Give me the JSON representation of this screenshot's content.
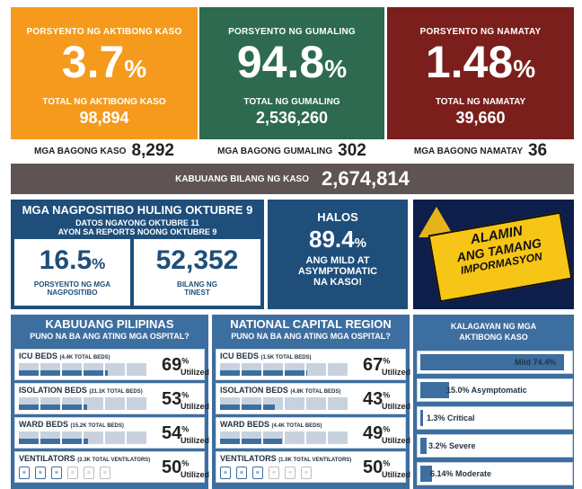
{
  "cards": {
    "active": {
      "title": "PORSYENTO NG AKTIBONG KASO",
      "value": "3.7",
      "pct": "%",
      "subtitle": "TOTAL NG AKTIBONG KASO",
      "number": "98,894",
      "color": "#f59a1c"
    },
    "recovered": {
      "title": "PORSYENTO NG GUMALING",
      "value": "94.8",
      "pct": "%",
      "subtitle": "TOTAL NG GUMALING",
      "number": "2,536,260",
      "color": "#2d6a4f"
    },
    "deaths": {
      "title": "PORSYENTO NG NAMATAY",
      "value": "1.48",
      "pct": "%",
      "subtitle": "TOTAL NG NAMATAY",
      "number": "39,660",
      "color": "#7a1f1c"
    }
  },
  "new_cases": {
    "label": "MGA BAGONG KASO",
    "value": "8,292"
  },
  "new_recovered": {
    "label": "MGA BAGONG GUMALING",
    "value": "302"
  },
  "new_deaths": {
    "label": "MGA BAGONG NAMATAY",
    "value": "36"
  },
  "total_cases": {
    "label": "KABUUANG BILANG NG KASO",
    "value": "2,674,814"
  },
  "positivity": {
    "title": "MGA NAGPOSITIBO HULING OKTUBRE 9",
    "date_line1": "DATOS NGAYONG OKTUBRE 11",
    "date_line2": "AYON SA REPORTS NOONG OKTUBRE 9",
    "rate_value": "16.5",
    "rate_pct": "%",
    "rate_label_1": "PORSYENTO NG MGA",
    "rate_label_2": "NAGPOSITIBO",
    "tested_value": "52,352",
    "tested_label_1": "BILANG NG",
    "tested_label_2": "TINEST"
  },
  "mild": {
    "line1": "HALOS",
    "value": "89.4",
    "pct": "%",
    "line2": "ANG MILD AT",
    "line3": "ASYMPTOMATIC",
    "line4": "NA KASO!"
  },
  "banner": {
    "line1": "ALAMIN",
    "line2": "ANG TAMANG",
    "line3": "IMPORMASYON"
  },
  "ph": {
    "title": "KABUUANG PILIPINAS",
    "subtitle": "PUNO NA BA ANG ATING MGA OSPITAL?",
    "rows": [
      {
        "label": "ICU BEDS",
        "detail": "(4.4K TOTAL BEDS)",
        "value": "69",
        "pct": "%",
        "utilized": "Utilized",
        "level": 0.69
      },
      {
        "label": "ISOLATION BEDS",
        "detail": "(21.1K TOTAL BEDS)",
        "value": "53",
        "pct": "%",
        "utilized": "Utilized",
        "level": 0.53
      },
      {
        "label": "WARD BEDS",
        "detail": "(15.2K TOTAL BEDS)",
        "value": "54",
        "pct": "%",
        "utilized": "Utilized",
        "level": 0.54
      },
      {
        "label": "VENTILATORS",
        "detail": "(3.3K TOTAL VENTILATORS)",
        "value": "50",
        "pct": "%",
        "utilized": "Utilized",
        "level": 0.5
      }
    ]
  },
  "ncr": {
    "title": "NATIONAL CAPITAL REGION",
    "subtitle": "PUNO NA BA ANG ATING MGA OSPITAL?",
    "rows": [
      {
        "label": "ICU BEDS",
        "detail": "(1.5K TOTAL BEDS)",
        "value": "67",
        "pct": "%",
        "utilized": "Utilized",
        "level": 0.67
      },
      {
        "label": "ISOLATION BEDS",
        "detail": "(4.8K TOTAL BEDS)",
        "value": "43",
        "pct": "%",
        "utilized": "Utilized",
        "level": 0.43
      },
      {
        "label": "WARD BEDS",
        "detail": "(4.4K TOTAL BEDS)",
        "value": "49",
        "pct": "%",
        "utilized": "Utilized",
        "level": 0.49
      },
      {
        "label": "VENTILATORS",
        "detail": "(1.0K TOTAL VENTILATORS)",
        "value": "50",
        "pct": "%",
        "utilized": "Utilized",
        "level": 0.5
      }
    ]
  },
  "severity": {
    "title_1": "KALAGAYAN NG MGA",
    "title_2": "AKTIBONG KASO",
    "items": [
      {
        "label": "Mild 74.4%",
        "share": 74.4
      },
      {
        "label": "15.0% Asymptomatic",
        "share": 15.0
      },
      {
        "label": "1.3% Critical",
        "share": 1.3
      },
      {
        "label": "3.2% Severe",
        "share": 3.2
      },
      {
        "label": "6.14% Moderate",
        "share": 6.14
      }
    ]
  }
}
